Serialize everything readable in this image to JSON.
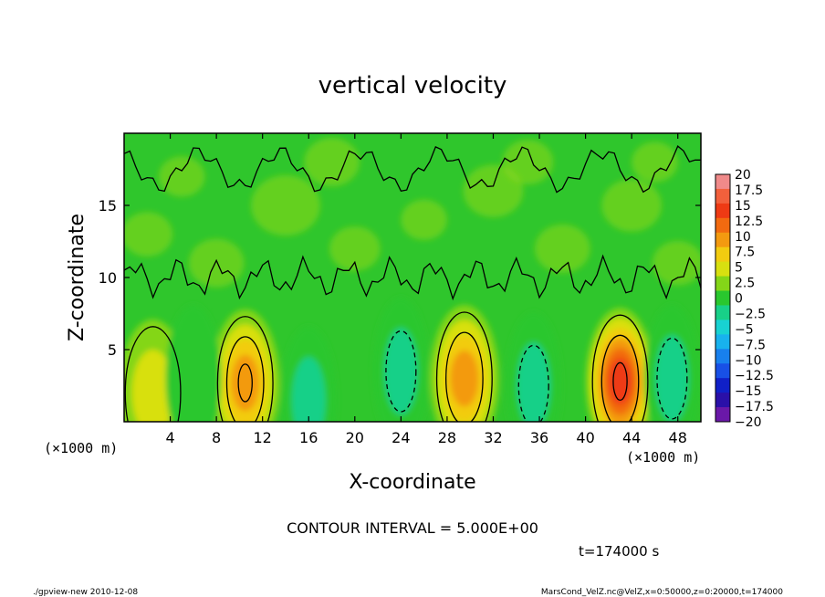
{
  "chart_data": {
    "type": "heatmap",
    "title": "vertical velocity",
    "xlabel": "X-coordinate",
    "ylabel": "Z-coordinate",
    "x_unit_left": "(×1000 m)",
    "x_unit_right": "(×1000 m)",
    "xlim": [
      0,
      50
    ],
    "ylim": [
      0,
      20
    ],
    "x_ticks": [
      4,
      8,
      12,
      16,
      20,
      24,
      28,
      32,
      36,
      40,
      44,
      48
    ],
    "x_tick_labels": [
      "4",
      "8",
      "12",
      "16",
      "20",
      "24",
      "28",
      "32",
      "36",
      "40",
      "44",
      "48"
    ],
    "y_ticks": [
      5,
      10,
      15
    ],
    "y_tick_labels": [
      "5",
      "10",
      "15"
    ],
    "contour_interval_label": "CONTOUR INTERVAL = 5.000E+00",
    "time_label": "t=174000 s",
    "colorbar": {
      "levels": [
        20,
        17.5,
        15,
        12.5,
        10,
        7.5,
        5,
        2.5,
        0,
        -2.5,
        -5,
        -7.5,
        -10,
        -12.5,
        -15,
        -17.5,
        -20
      ],
      "labels": [
        "20",
        "17.5",
        "15",
        "12.5",
        "10",
        "7.5",
        "5",
        "2.5",
        "0",
        "−2.5",
        "−5",
        "−7.5",
        "−10",
        "−12.5",
        "−15",
        "−17.5",
        "−20"
      ],
      "colors": [
        "#f08a8a",
        "#f2603c",
        "#ee3a14",
        "#f26a10",
        "#f39a10",
        "#f2cc10",
        "#d8e010",
        "#84d618",
        "#29c72e",
        "#18d088",
        "#18d2d2",
        "#18b2ee",
        "#1880ee",
        "#1850e6",
        "#1020c8",
        "#2a10a8",
        "#6a18a8"
      ]
    },
    "updrafts": [
      {
        "x": 10.5,
        "z": 3.2,
        "peak": 11
      },
      {
        "x": 29.5,
        "z": 3.5,
        "peak": 9
      },
      {
        "x": 43.0,
        "z": 3.3,
        "peak": 14
      },
      {
        "x": 2.5,
        "z": 2.5,
        "peak": 4
      }
    ],
    "downdrafts": [
      {
        "x": 16.0,
        "z": 2.0,
        "peak": -4
      },
      {
        "x": 24.0,
        "z": 4.0,
        "peak": -6
      },
      {
        "x": 35.5,
        "z": 3.0,
        "peak": -5
      },
      {
        "x": 47.5,
        "z": 3.5,
        "peak": -6
      },
      {
        "x": 6.0,
        "z": 3.5,
        "peak": -2
      }
    ]
  },
  "footer": {
    "left": "./gpview-new  2010-12-08",
    "right": "MarsCond_VelZ.nc@VelZ,x=0:50000,z=0:20000,t=174000"
  }
}
